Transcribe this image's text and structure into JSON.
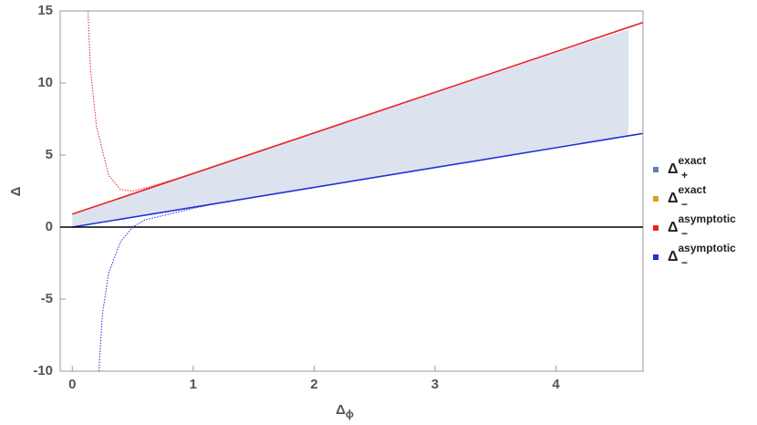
{
  "chart_data": {
    "type": "line",
    "x_label": "Δ",
    "x_label_sub": "ϕ",
    "y_label": "Δ",
    "xlim": [
      -0.1,
      4.72
    ],
    "ylim": [
      -10,
      15
    ],
    "xticks": [
      0,
      1,
      2,
      3,
      4
    ],
    "yticks": [
      -10,
      -5,
      0,
      5,
      10,
      15
    ],
    "zero_line": true,
    "band_color": "#dde3ee",
    "series": [
      {
        "name": "Δ",
        "name_sub": "+",
        "name_sup": "exact",
        "color": "#5e81b5",
        "style": "band-upper",
        "x": [
          0,
          0.1,
          0.2,
          0.3,
          0.5,
          1,
          2,
          3,
          4,
          4.6
        ],
        "values": [
          0.9,
          1.2,
          1.5,
          1.8,
          2.3,
          3.7,
          6.5,
          9.3,
          12.1,
          13.7
        ]
      },
      {
        "name": "Δ",
        "name_sub": "−",
        "name_sup": "exact",
        "color": "#e19c24",
        "style": "band-lower",
        "x": [
          0,
          0.1,
          0.2,
          0.3,
          0.5,
          1,
          2,
          3,
          4,
          4.6
        ],
        "values": [
          0,
          0.15,
          0.3,
          0.45,
          0.72,
          1.4,
          2.8,
          4.15,
          5.55,
          6.35
        ]
      },
      {
        "name": "Δ",
        "name_sub": "−",
        "name_sup": "asymptotic",
        "color": "#e8222a",
        "style": "solid",
        "x": [
          0,
          4.72
        ],
        "values": [
          0.9,
          14.2
        ]
      },
      {
        "name": "Δ",
        "name_sub": "−",
        "name_sup": "asymptotic",
        "color": "#1f2fd6",
        "style": "solid",
        "x": [
          0,
          4.72
        ],
        "values": [
          0,
          6.5
        ]
      },
      {
        "color": "#e8222a",
        "style": "dotted",
        "x": [
          0.13,
          0.15,
          0.2,
          0.3,
          0.4,
          0.5,
          0.6,
          0.8,
          1.0
        ],
        "values": [
          15,
          11,
          7,
          3.6,
          2.6,
          2.5,
          2.7,
          3.2,
          3.7
        ]
      },
      {
        "color": "#1f2fd6",
        "style": "dotted",
        "x": [
          0.22,
          0.25,
          0.3,
          0.4,
          0.5,
          0.6,
          0.8,
          1,
          1.2
        ],
        "values": [
          -10,
          -6,
          -3.2,
          -1,
          0,
          0.5,
          0.9,
          1.3,
          1.65
        ]
      }
    ]
  }
}
